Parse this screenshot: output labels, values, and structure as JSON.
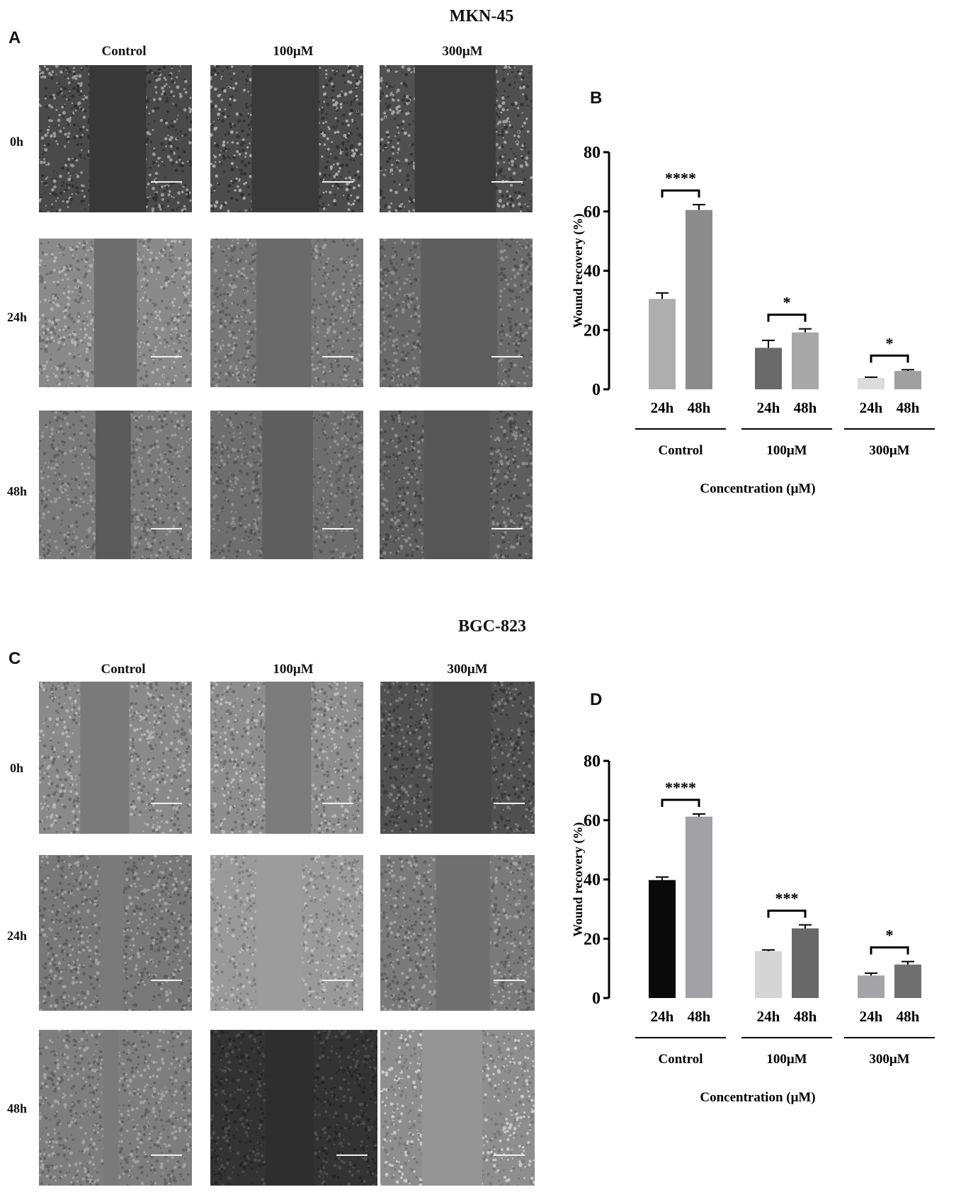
{
  "panels": {
    "A": {
      "letter": "A",
      "cell_line": "MKN-45"
    },
    "B": {
      "letter": "B"
    },
    "C": {
      "letter": "C",
      "cell_line": "BGC-823"
    },
    "D": {
      "letter": "D"
    }
  },
  "grid_columns": [
    "Control",
    "100μM",
    "300μM"
  ],
  "grid_rows": [
    "0h",
    "24h",
    "48h"
  ],
  "chart_data": [
    {
      "type": "bar",
      "panel": "B",
      "ylabel": "Wound recovery (%)",
      "xlabel": "Concentration (μM)",
      "ylim": [
        0,
        80
      ],
      "yticks": [
        0,
        20,
        40,
        60,
        80
      ],
      "groups": [
        {
          "name": "Control",
          "bars": [
            {
              "label": "24h",
              "value": 30.5,
              "error": 2.0,
              "color": "#aeaeae"
            },
            {
              "label": "48h",
              "value": 60.5,
              "error": 1.8,
              "color": "#8c8c8c"
            }
          ],
          "significance": "****"
        },
        {
          "name": "100μM",
          "bars": [
            {
              "label": "24h",
              "value": 14.0,
              "error": 2.5,
              "color": "#6a6a6a"
            },
            {
              "label": "48h",
              "value": 19.2,
              "error": 1.2,
              "color": "#a8a8a8"
            }
          ],
          "significance": "*"
        },
        {
          "name": "300μM",
          "bars": [
            {
              "label": "24h",
              "value": 3.8,
              "error": 0.3,
              "color": "#dcdcdc"
            },
            {
              "label": "48h",
              "value": 6.2,
              "error": 0.4,
              "color": "#a0a0a0"
            }
          ],
          "significance": "*"
        }
      ]
    },
    {
      "type": "bar",
      "panel": "D",
      "ylabel": "Wound recovery (%)",
      "xlabel": "Concentration (μM)",
      "ylim": [
        0,
        80
      ],
      "yticks": [
        0,
        20,
        40,
        60,
        80
      ],
      "groups": [
        {
          "name": "Control",
          "bars": [
            {
              "label": "24h",
              "value": 39.8,
              "error": 1.0,
              "color": "#0a0a0a"
            },
            {
              "label": "48h",
              "value": 61.2,
              "error": 0.9,
              "color": "#a2a2a6"
            }
          ],
          "significance": "****"
        },
        {
          "name": "100μM",
          "bars": [
            {
              "label": "24h",
              "value": 15.8,
              "error": 0.4,
              "color": "#d5d5d5"
            },
            {
              "label": "48h",
              "value": 23.5,
              "error": 1.2,
              "color": "#686868"
            }
          ],
          "significance": "***"
        },
        {
          "name": "300μM",
          "bars": [
            {
              "label": "24h",
              "value": 7.6,
              "error": 0.8,
              "color": "#a4a4a8"
            },
            {
              "label": "48h",
              "value": 11.3,
              "error": 1.0,
              "color": "#6f6f6f"
            }
          ],
          "significance": "*"
        }
      ]
    }
  ]
}
